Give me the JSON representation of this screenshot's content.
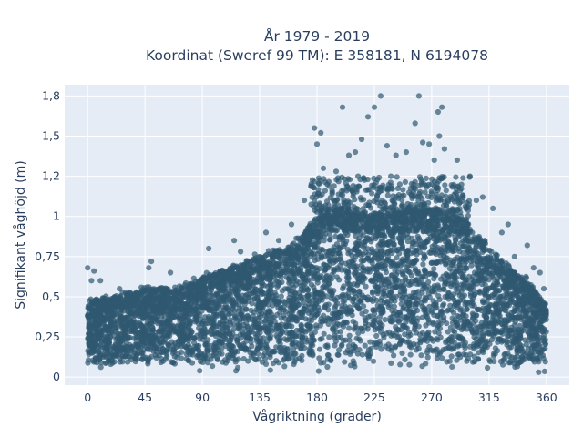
{
  "chart_data": {
    "type": "scatter",
    "title_lines": [
      "År 1979 - 2019",
      "Koordinat (Sweref 99 TM): E 358181, N 6194078"
    ],
    "xlabel": "Vågriktning (grader)",
    "ylabel": "Signifikant våghöjd (m)",
    "xlim": [
      -18,
      378
    ],
    "ylim": [
      -0.05,
      1.82
    ],
    "x_ticks": [
      {
        "value": 0,
        "label": "0"
      },
      {
        "value": 45,
        "label": "45"
      },
      {
        "value": 90,
        "label": "90"
      },
      {
        "value": 135,
        "label": "135"
      },
      {
        "value": 180,
        "label": "180"
      },
      {
        "value": 225,
        "label": "225"
      },
      {
        "value": 270,
        "label": "270"
      },
      {
        "value": 315,
        "label": "315"
      },
      {
        "value": 360,
        "label": "360"
      }
    ],
    "y_ticks": [
      {
        "value": 0,
        "label": "0"
      },
      {
        "value": 0.25,
        "label": "0,25"
      },
      {
        "value": 0.5,
        "label": "0,5"
      },
      {
        "value": 0.75,
        "label": "0,75"
      },
      {
        "value": 1,
        "label": "1"
      },
      {
        "value": 1.25,
        "label": "1,2"
      },
      {
        "value": 1.5,
        "label": "1,5"
      },
      {
        "value": 1.75,
        "label": "1,8"
      }
    ],
    "grid": true,
    "marker_color": "#2f5870",
    "plot_bg": "#e5ecf6",
    "upper_envelope": [
      [
        0,
        0.48
      ],
      [
        20,
        0.5
      ],
      [
        45,
        0.55
      ],
      [
        70,
        0.55
      ],
      [
        90,
        0.62
      ],
      [
        110,
        0.68
      ],
      [
        135,
        0.75
      ],
      [
        160,
        0.82
      ],
      [
        175,
        0.95
      ],
      [
        185,
        1.05
      ],
      [
        200,
        1.05
      ],
      [
        225,
        1.0
      ],
      [
        250,
        1.05
      ],
      [
        270,
        1.05
      ],
      [
        290,
        1.0
      ],
      [
        310,
        0.85
      ],
      [
        330,
        0.68
      ],
      [
        345,
        0.6
      ],
      [
        360,
        0.45
      ]
    ],
    "lower_bound": 0.05,
    "outliers": [
      [
        0,
        0.68
      ],
      [
        5,
        0.66
      ],
      [
        3,
        0.6
      ],
      [
        10,
        0.6
      ],
      [
        25,
        0.55
      ],
      [
        50,
        0.72
      ],
      [
        48,
        0.68
      ],
      [
        65,
        0.65
      ],
      [
        95,
        0.8
      ],
      [
        115,
        0.85
      ],
      [
        120,
        0.78
      ],
      [
        140,
        0.9
      ],
      [
        150,
        0.85
      ],
      [
        160,
        0.95
      ],
      [
        170,
        1.1
      ],
      [
        178,
        1.55
      ],
      [
        183,
        1.52
      ],
      [
        180,
        1.45
      ],
      [
        185,
        1.3
      ],
      [
        188,
        1.2
      ],
      [
        195,
        1.28
      ],
      [
        200,
        1.68
      ],
      [
        205,
        1.38
      ],
      [
        210,
        1.4
      ],
      [
        215,
        1.48
      ],
      [
        220,
        1.62
      ],
      [
        225,
        1.68
      ],
      [
        230,
        1.75
      ],
      [
        235,
        1.44
      ],
      [
        242,
        1.38
      ],
      [
        250,
        1.4
      ],
      [
        257,
        1.58
      ],
      [
        260,
        1.75
      ],
      [
        263,
        1.46
      ],
      [
        268,
        1.45
      ],
      [
        272,
        1.35
      ],
      [
        276,
        1.5
      ],
      [
        278,
        1.68
      ],
      [
        275,
        1.65
      ],
      [
        280,
        1.42
      ],
      [
        290,
        1.35
      ],
      [
        300,
        1.25
      ],
      [
        305,
        1.1
      ],
      [
        310,
        1.12
      ],
      [
        318,
        1.05
      ],
      [
        330,
        0.95
      ],
      [
        345,
        0.82
      ],
      [
        350,
        0.68
      ],
      [
        355,
        0.65
      ],
      [
        358,
        0.55
      ],
      [
        335,
        0.75
      ],
      [
        325,
        0.9
      ],
      [
        245,
        1.2
      ],
      [
        238,
        1.25
      ],
      [
        192,
        1.15
      ]
    ]
  }
}
